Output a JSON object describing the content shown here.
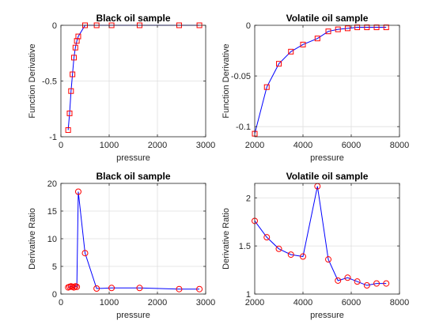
{
  "chart_data": [
    {
      "type": "line",
      "title": "Black oil sample",
      "xlabel": "pressure",
      "ylabel": "Function Derivative",
      "xlim": [
        0,
        3000
      ],
      "ylim": [
        -1,
        0
      ],
      "xticks": [
        0,
        1000,
        2000,
        3000
      ],
      "xtick_labels": [
        "0",
        "1000",
        "2000",
        "3000"
      ],
      "yticks": [
        -1,
        -0.5,
        0
      ],
      "ytick_labels": [
        "-1",
        "-0.5",
        "0"
      ],
      "grid": true,
      "marker": "square",
      "line_color": "#0000ff",
      "marker_color": "#ff0000",
      "series": [
        {
          "x": [
            150,
            180,
            210,
            240,
            270,
            300,
            330,
            360,
            500,
            740,
            1050,
            1630,
            2450,
            2870
          ],
          "y": [
            -0.94,
            -0.79,
            -0.59,
            -0.44,
            -0.29,
            -0.2,
            -0.14,
            -0.1,
            0,
            0,
            0,
            0,
            0,
            0
          ]
        }
      ]
    },
    {
      "type": "line",
      "title": "Volatile oil sample",
      "xlabel": "pressure",
      "ylabel": "Function Derivative",
      "xlim": [
        2000,
        8000
      ],
      "ylim": [
        -0.11,
        0
      ],
      "xticks": [
        2000,
        4000,
        6000,
        8000
      ],
      "xtick_labels": [
        "2000",
        "4000",
        "6000",
        "8000"
      ],
      "yticks": [
        -0.1,
        -0.05,
        0
      ],
      "ytick_labels": [
        "-0.1",
        "-0.05",
        "0"
      ],
      "grid": true,
      "marker": "square",
      "line_color": "#0000ff",
      "marker_color": "#ff0000",
      "series": [
        {
          "x": [
            2000,
            2500,
            3000,
            3500,
            4000,
            4600,
            5050,
            5450,
            5850,
            6250,
            6650,
            7050,
            7450
          ],
          "y": [
            -0.107,
            -0.061,
            -0.038,
            -0.026,
            -0.019,
            -0.013,
            -0.006,
            -0.004,
            -0.003,
            -0.002,
            -0.002,
            -0.002,
            -0.002
          ]
        }
      ]
    },
    {
      "type": "line",
      "title": "Black oil sample",
      "xlabel": "pressure",
      "ylabel": "Derivative Ratio",
      "xlim": [
        0,
        3000
      ],
      "ylim": [
        0,
        20
      ],
      "xticks": [
        0,
        1000,
        2000,
        3000
      ],
      "xtick_labels": [
        "0",
        "1000",
        "2000",
        "3000"
      ],
      "yticks": [
        0,
        5,
        10,
        15,
        20
      ],
      "ytick_labels": [
        "0",
        "5",
        "10",
        "15",
        "20"
      ],
      "grid": true,
      "marker": "circle",
      "line_color": "#0000ff",
      "marker_color": "#ff0000",
      "series": [
        {
          "x": [
            150,
            180,
            210,
            240,
            270,
            300,
            330,
            360,
            500,
            740,
            1050,
            1630,
            2450,
            2870
          ],
          "y": [
            1.2,
            1.3,
            1.4,
            1.3,
            1.2,
            1.4,
            1.3,
            18.5,
            7.4,
            1.0,
            1.1,
            1.1,
            0.9,
            0.9
          ]
        }
      ]
    },
    {
      "type": "line",
      "title": "Volatile oil sample",
      "xlabel": "pressure",
      "ylabel": "Derivative Ratio",
      "xlim": [
        2000,
        8000
      ],
      "ylim": [
        1,
        2.15
      ],
      "xticks": [
        2000,
        4000,
        6000,
        8000
      ],
      "xtick_labels": [
        "2000",
        "4000",
        "6000",
        "8000"
      ],
      "yticks": [
        1,
        1.5,
        2
      ],
      "ytick_labels": [
        "1",
        "1.5",
        "2"
      ],
      "grid": true,
      "marker": "circle",
      "line_color": "#0000ff",
      "marker_color": "#ff0000",
      "series": [
        {
          "x": [
            2000,
            2500,
            3000,
            3500,
            4000,
            4600,
            5050,
            5450,
            5850,
            6250,
            6650,
            7050,
            7450
          ],
          "y": [
            1.76,
            1.59,
            1.47,
            1.41,
            1.39,
            2.12,
            1.36,
            1.14,
            1.17,
            1.13,
            1.09,
            1.11,
            1.11
          ]
        }
      ]
    }
  ]
}
